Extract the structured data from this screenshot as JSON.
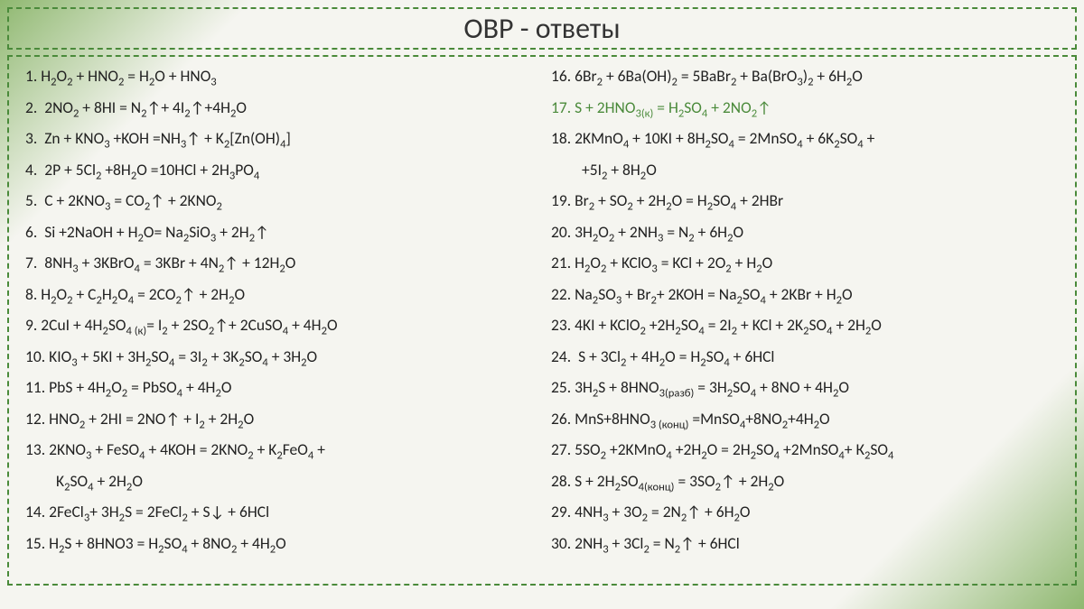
{
  "title": "ОВР - ответы",
  "colors": {
    "border": "#4a8a3a",
    "text": "#222222",
    "highlight": "#4a8a3a",
    "gradient_start": "#8fb870",
    "gradient_mid": "#f5f5f0"
  },
  "typography": {
    "title_fontsize": 32,
    "body_fontsize": 17.5,
    "font_family": "Calibri"
  },
  "left_equations": [
    {
      "n": "1.",
      "html": "H<sub>2</sub>O<sub>2</sub> + HNO<sub>2</sub> = H<sub>2</sub>O + HNO<sub>3</sub>"
    },
    {
      "n": "2.",
      "html": "&nbsp;2NO<sub>2</sub> + 8HI = N<sub>2</sub>↑+ 4I<sub>2</sub>↑+4H<sub>2</sub>O"
    },
    {
      "n": "3.",
      "html": "&nbsp;Zn + KNO<sub>3</sub> +KOH =NH<sub>3</sub>↑ + K<sub>2</sub>[Zn(OH)<sub>4</sub>]"
    },
    {
      "n": "4.",
      "html": "&nbsp;2P + 5Cl<sub>2</sub> +8H<sub>2</sub>O =10HCl + 2H<sub>3</sub>PO<sub>4</sub>"
    },
    {
      "n": "5.",
      "html": "&nbsp;C + 2KNO<sub>3</sub> = CO<sub>2</sub>↑ + 2KNO<sub>2</sub>"
    },
    {
      "n": "6.",
      "html": "&nbsp;Si +2NaOH + H<sub>2</sub>O= Na<sub>2</sub>SiO<sub>3</sub> + 2H<sub>2</sub>↑"
    },
    {
      "n": "7.",
      "html": "&nbsp;8NH<sub>3</sub> + 3KBrO<sub>4</sub> = 3KBr + 4N<sub>2</sub>↑ + 12H<sub>2</sub>O"
    },
    {
      "n": "8.",
      "html": "H<sub>2</sub>O<sub>2</sub> + C<sub>2</sub>H<sub>2</sub>O<sub>4</sub> = 2CO<sub>2</sub>↑ + 2H<sub>2</sub>O"
    },
    {
      "n": "9.",
      "html": "2CuI + 4H<sub>2</sub>SO<sub>4 (к)</sub>= I<sub>2</sub> + 2SO<sub>2</sub>↑+ 2CuSO<sub>4</sub> + 4H<sub>2</sub>O"
    },
    {
      "n": "10.",
      "html": "KIO<sub>3</sub> + 5KI + 3H<sub>2</sub>SO<sub>4</sub> = 3I<sub>2</sub> + 3K<sub>2</sub>SO<sub>4</sub> + 3H<sub>2</sub>O"
    },
    {
      "n": "11.",
      "html": "PbS + 4H<sub>2</sub>O<sub>2</sub> = PbSO<sub>4</sub> + 4H<sub>2</sub>O"
    },
    {
      "n": "12.",
      "html": "HNO<sub>2</sub> + 2HI = 2NO↑ + I<sub>2</sub> + 2H<sub>2</sub>O"
    },
    {
      "n": "13.",
      "html": "2KNO<sub>3</sub> + FeSO<sub>4</sub> + 4KOH = 2KNO<sub>2</sub> + K<sub>2</sub>FeO<sub>4</sub> +"
    },
    {
      "n": "",
      "html": "K<sub>2</sub>SO<sub>4</sub> + 2H<sub>2</sub>O",
      "cont": true
    },
    {
      "n": "14.",
      "html": "2FeCl<sub>3</sub>+ 3H<sub>2</sub>S = 2FeCl<sub>2</sub> + S↓ + 6HCl"
    },
    {
      "n": "15.",
      "html": "H<sub>2</sub>S + 8HNO3 = H<sub>2</sub>SO<sub>4</sub> + 8NO<sub>2</sub> + 4H<sub>2</sub>O"
    }
  ],
  "right_equations": [
    {
      "n": "16.",
      "html": "6Br<sub>2</sub> + 6Ba(OH)<sub>2</sub> = 5BaBr<sub>2</sub> + Ba(BrO<sub>3</sub>)<sub>2</sub> + 6H<sub>2</sub>O"
    },
    {
      "n": "17.",
      "html": "S + 2HNO<sub>3(к)</sub> = H<sub>2</sub>SO<sub>4</sub> + 2NO<sub>2</sub>↑",
      "highlight": true
    },
    {
      "n": "18.",
      "html": "2KMnO<sub>4</sub> + 10KI + 8H<sub>2</sub>SO<sub>4</sub> = 2MnSO<sub>4</sub> + 6K<sub>2</sub>SO<sub>4</sub> +"
    },
    {
      "n": "",
      "html": "+5I<sub>2</sub> + 8H<sub>2</sub>O",
      "cont": true
    },
    {
      "n": "19.",
      "html": "Br<sub>2</sub> + SO<sub>2</sub> + 2H<sub>2</sub>O = H<sub>2</sub>SO<sub>4</sub> + 2HBr"
    },
    {
      "n": "20.",
      "html": "3H<sub>2</sub>O<sub>2</sub> + 2NH<sub>3</sub> = N<sub>2</sub> + 6H<sub>2</sub>O"
    },
    {
      "n": "21.",
      "html": "H<sub>2</sub>O<sub>2</sub> + KClO<sub>3</sub> = KCl + 2O<sub>2</sub> + H<sub>2</sub>O"
    },
    {
      "n": "22.",
      "html": "Na<sub>2</sub>SO<sub>3</sub> + Br<sub>2</sub>+ 2KOH = Na<sub>2</sub>SO<sub>4</sub> + 2KBr + H<sub>2</sub>O"
    },
    {
      "n": "23.",
      "html": "4KI + KClO<sub>2</sub> +2H<sub>2</sub>SO<sub>4</sub> = 2I<sub>2</sub> + KCl + 2K<sub>2</sub>SO<sub>4</sub> + 2H<sub>2</sub>O"
    },
    {
      "n": "24.",
      "html": "&nbsp;S + 3Cl<sub>2</sub> + 4H<sub>2</sub>O = H<sub>2</sub>SO<sub>4</sub> + 6HCl"
    },
    {
      "n": "25.",
      "html": "3H<sub>2</sub>S + 8HNO<sub>3(разб)</sub> = 3H<sub>2</sub>SO<sub>4</sub> + 8NO + 4H<sub>2</sub>O"
    },
    {
      "n": "26.",
      "html": "MnS+8HNO<sub>3 (конц)</sub> =MnSO<sub>4</sub>+8NO<sub>2</sub>+4H<sub>2</sub>O"
    },
    {
      "n": "27.",
      "html": "5SO<sub>2</sub> +2KMnO<sub>4</sub> +2H<sub>2</sub>O = 2H<sub>2</sub>SO<sub>4</sub> +2MnSO<sub>4</sub>+ К<sub>2</sub>SO<sub>4</sub>"
    },
    {
      "n": "28.",
      "html": "S + 2H<sub>2</sub>SO<sub>4(конц)</sub> = 3SO<sub>2</sub>↑ + 2H<sub>2</sub>O"
    },
    {
      "n": "29.",
      "html": "4NH<sub>3</sub> + 3O<sub>2</sub> = 2N<sub>2</sub>↑ + 6H<sub>2</sub>O"
    },
    {
      "n": "30.",
      "html": "2NH<sub>3</sub> + 3Cl<sub>2</sub> = N<sub>2</sub>↑ + 6HCl"
    }
  ]
}
